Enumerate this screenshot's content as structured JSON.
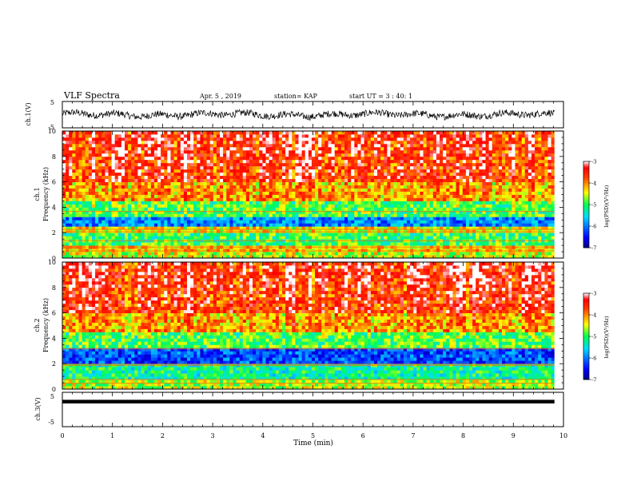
{
  "header": {
    "title": "VLF Spectra",
    "date": "Apr. 5 , 2019",
    "station": "station= KAP",
    "start": "start UT = 3 : 40: 1"
  },
  "chart_data": [
    {
      "type": "line",
      "ylabel": "ch.1(V)",
      "ylim": [
        -5,
        5
      ],
      "y_ticks": [
        "-5",
        "5"
      ],
      "description_values": "noisy waveform oscillating around 0 V, mostly within -1.5 to 1.5 V"
    },
    {
      "type": "heatmap",
      "ylabel_lines": [
        "ch.1",
        "Frequency (kHz)"
      ],
      "ylim": [
        0,
        10
      ],
      "y_ticks": [
        "0",
        "2",
        "4",
        "6",
        "8",
        "10"
      ],
      "bands_khz": [
        {
          "from": 0,
          "to": 0.5,
          "level": -4.5
        },
        {
          "from": 0.5,
          "to": 1.0,
          "level": -4.2
        },
        {
          "from": 1.0,
          "to": 2.0,
          "level": -5.0
        },
        {
          "from": 2.0,
          "to": 2.6,
          "level": -4.4
        },
        {
          "from": 2.6,
          "to": 3.2,
          "level": -5.9
        },
        {
          "from": 3.2,
          "to": 4.5,
          "level": -4.9
        },
        {
          "from": 4.5,
          "to": 6.0,
          "level": -4.1
        },
        {
          "from": 6.0,
          "to": 8.0,
          "level": -3.6
        },
        {
          "from": 8.0,
          "to": 10.0,
          "level": -3.5
        }
      ],
      "colorbar": {
        "label": "log(PSD)(V²/Hz)",
        "range": [
          -7,
          -3
        ],
        "ticks": [
          "-3",
          "-4",
          "-5",
          "-6",
          "-7"
        ]
      }
    },
    {
      "type": "heatmap",
      "ylabel_lines": [
        "ch.2",
        "Frequency (kHz)"
      ],
      "ylim": [
        0,
        10
      ],
      "y_ticks": [
        "0",
        "2",
        "4",
        "6",
        "8",
        "10"
      ],
      "bands_khz": [
        {
          "from": 0,
          "to": 0.8,
          "level": -4.6
        },
        {
          "from": 0.8,
          "to": 2.0,
          "level": -5.2
        },
        {
          "from": 2.0,
          "to": 3.2,
          "level": -6.2
        },
        {
          "from": 3.2,
          "to": 4.5,
          "level": -4.9
        },
        {
          "from": 4.5,
          "to": 6.0,
          "level": -4.1
        },
        {
          "from": 6.0,
          "to": 8.0,
          "level": -3.6
        },
        {
          "from": 8.0,
          "to": 10.0,
          "level": -3.5
        }
      ],
      "colorbar": {
        "label": "log(PSD)(V²/Hz)",
        "range": [
          -7,
          -3
        ],
        "ticks": [
          "-3",
          "-4",
          "-5",
          "-6",
          "-7"
        ]
      }
    },
    {
      "type": "line",
      "ylabel": "ch.3(V)",
      "ylim": [
        -5,
        5
      ],
      "y_ticks": [
        "-5",
        "5"
      ],
      "xlabel": "Time (min)",
      "xlim": [
        0,
        10
      ],
      "x_ticks": [
        "0",
        "1",
        "2",
        "3",
        "4",
        "5",
        "6",
        "7",
        "8",
        "9",
        "10"
      ],
      "x": [
        0,
        9.82
      ],
      "y": [
        2.3,
        2.3
      ]
    }
  ]
}
